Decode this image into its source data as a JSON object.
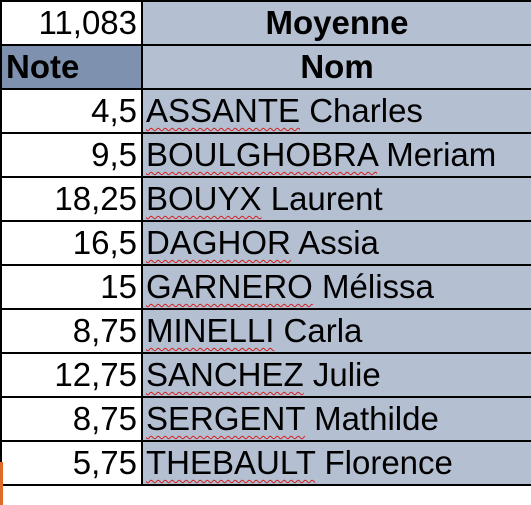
{
  "summary": {
    "average_value": "11,083",
    "average_label": "Moyenne"
  },
  "headers": {
    "note": "Note",
    "nom": "Nom"
  },
  "rows": [
    {
      "note": "4,5",
      "surname": "ASSANTE",
      "firstname": "Charles"
    },
    {
      "note": "9,5",
      "surname": "BOULGHOBRA",
      "firstname": "Meriam"
    },
    {
      "note": "18,25",
      "surname": "BOUYX",
      "firstname": "Laurent"
    },
    {
      "note": "16,5",
      "surname": "DAGHOR",
      "firstname": "Assia"
    },
    {
      "note": "15",
      "surname": "GARNERO",
      "firstname": "Mélissa"
    },
    {
      "note": "8,75",
      "surname": "MINELLI",
      "firstname": "Carla"
    },
    {
      "note": "12,75",
      "surname": "SANCHEZ",
      "firstname": "Julie"
    },
    {
      "note": "8,75",
      "surname": "SERGENT",
      "firstname": "Mathilde"
    },
    {
      "note": "5,75",
      "surname": "THEBAULT",
      "firstname": "Florence"
    }
  ],
  "colors": {
    "header_note_bg": "#7e91ae",
    "name_column_bg": "#b4bfd1",
    "note_column_bg": "#ffffff",
    "spellcheck_underline": "#d32020",
    "selection_marker": "#e06a2a"
  }
}
